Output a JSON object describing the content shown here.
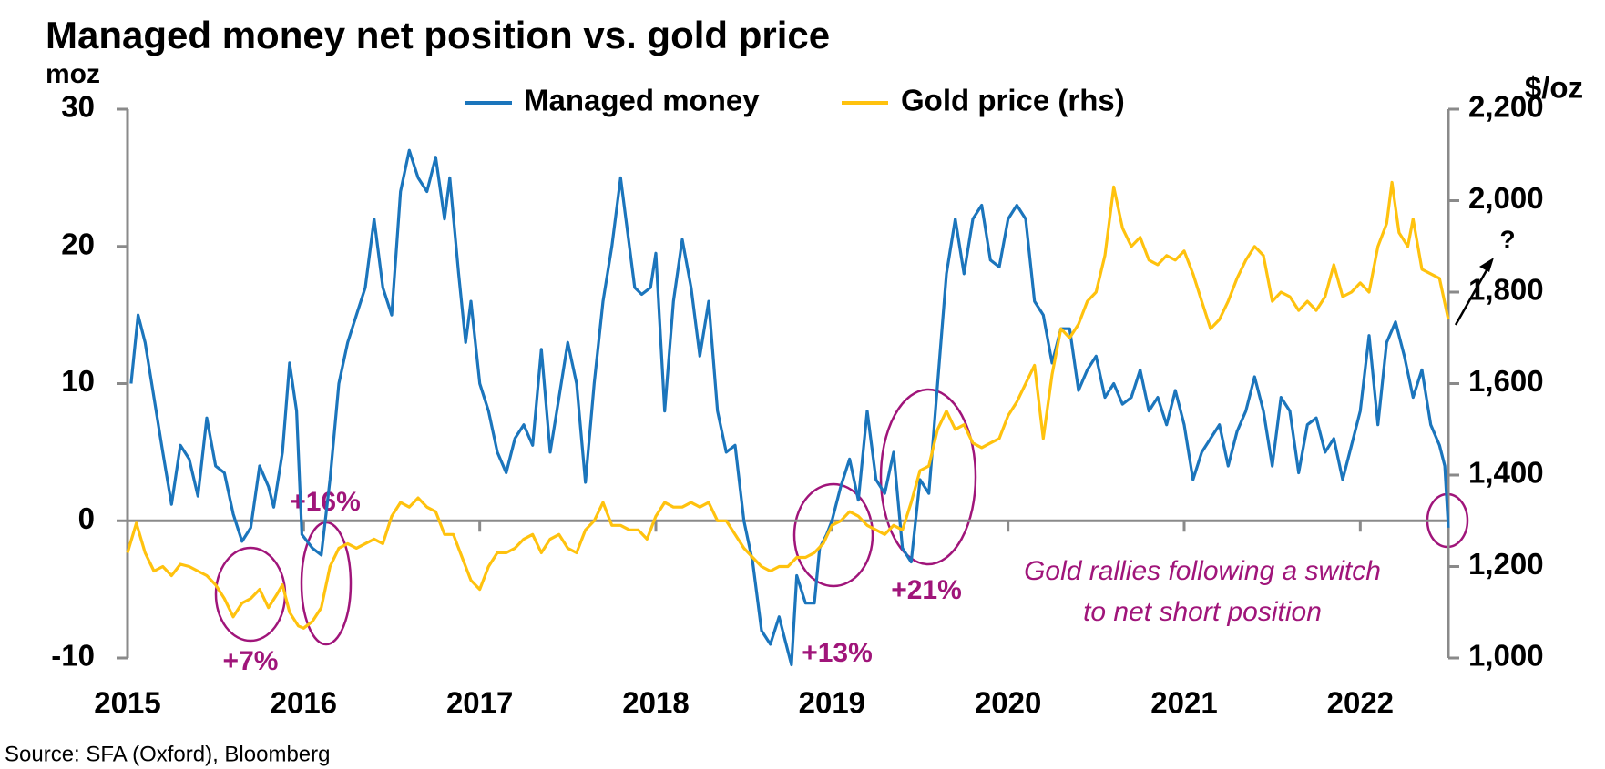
{
  "chart_data": {
    "type": "line",
    "title": "Managed money net position vs. gold price",
    "y_label": "moz",
    "y2_label": "$/oz",
    "source": "Source: SFA (Oxford), Bloomberg",
    "annotations": [
      "+16%",
      "+7%",
      "+13%",
      "+21%",
      "Gold rallies following a switch",
      "to net short position",
      "?"
    ],
    "xlim": [
      2015,
      2022.5
    ],
    "xticks": [
      2015,
      2016,
      2017,
      2018,
      2019,
      2020,
      2021,
      2022
    ],
    "ylim": [
      -10,
      30
    ],
    "yticks": [
      -10,
      0,
      10,
      20,
      30
    ],
    "y2lim": [
      1000,
      2200
    ],
    "y2ticks": [
      {
        "value": 1000,
        "label": "1,000"
      },
      {
        "value": 1200,
        "label": "1,200"
      },
      {
        "value": 1400,
        "label": "1,400"
      },
      {
        "value": 1600,
        "label": "1,600"
      },
      {
        "value": 1800,
        "label": "1,800"
      },
      {
        "value": 2000,
        "label": "2,000"
      },
      {
        "value": 2200,
        "label": "2,200"
      }
    ],
    "series": [
      {
        "name": "Managed money",
        "color": "#1b75bc",
        "axis": "y",
        "x": [
          2015.02,
          2015.06,
          2015.1,
          2015.15,
          2015.2,
          2015.25,
          2015.3,
          2015.35,
          2015.4,
          2015.45,
          2015.5,
          2015.55,
          2015.6,
          2015.65,
          2015.7,
          2015.75,
          2015.8,
          2015.83,
          2015.88,
          2015.92,
          2015.96,
          2015.99,
          2016.05,
          2016.1,
          2016.15,
          2016.2,
          2016.25,
          2016.3,
          2016.35,
          2016.4,
          2016.45,
          2016.5,
          2016.55,
          2016.6,
          2016.65,
          2016.7,
          2016.75,
          2016.8,
          2016.83,
          2016.88,
          2016.92,
          2016.95,
          2017.0,
          2017.05,
          2017.1,
          2017.15,
          2017.2,
          2017.25,
          2017.3,
          2017.35,
          2017.4,
          2017.45,
          2017.5,
          2017.55,
          2017.6,
          2017.65,
          2017.7,
          2017.75,
          2017.8,
          2017.83,
          2017.88,
          2017.92,
          2017.97,
          2018.0,
          2018.05,
          2018.1,
          2018.15,
          2018.2,
          2018.25,
          2018.3,
          2018.35,
          2018.4,
          2018.45,
          2018.5,
          2018.55,
          2018.6,
          2018.65,
          2018.7,
          2018.75,
          2018.77,
          2018.8,
          2018.85,
          2018.9,
          2018.93,
          2018.97,
          2019.0,
          2019.05,
          2019.1,
          2019.15,
          2019.2,
          2019.25,
          2019.3,
          2019.35,
          2019.4,
          2019.45,
          2019.5,
          2019.55,
          2019.6,
          2019.65,
          2019.7,
          2019.75,
          2019.8,
          2019.85,
          2019.9,
          2019.95,
          2020.0,
          2020.05,
          2020.1,
          2020.15,
          2020.2,
          2020.25,
          2020.3,
          2020.35,
          2020.4,
          2020.45,
          2020.5,
          2020.55,
          2020.6,
          2020.65,
          2020.7,
          2020.75,
          2020.8,
          2020.85,
          2020.9,
          2020.95,
          2021.0,
          2021.05,
          2021.1,
          2021.15,
          2021.2,
          2021.25,
          2021.3,
          2021.35,
          2021.4,
          2021.45,
          2021.5,
          2021.55,
          2021.6,
          2021.65,
          2021.7,
          2021.75,
          2021.8,
          2021.85,
          2021.9,
          2021.95,
          2022.0,
          2022.05,
          2022.1,
          2022.15,
          2022.2,
          2022.25,
          2022.3,
          2022.35,
          2022.4,
          2022.45,
          2022.48,
          2022.5
        ],
        "values": [
          10,
          15,
          13,
          9,
          5,
          1.2,
          5.5,
          4.5,
          1.8,
          7.5,
          4,
          3.5,
          0.5,
          -1.5,
          -0.5,
          4,
          2.5,
          1,
          5,
          11.5,
          8,
          -1,
          -2,
          -2.5,
          3,
          10,
          13,
          15,
          17,
          22,
          17,
          15,
          24,
          27,
          25,
          24,
          26.5,
          22,
          25,
          18,
          13,
          16,
          10,
          8,
          5,
          3.5,
          6,
          7,
          5.5,
          12.5,
          5,
          9,
          13,
          10,
          2.8,
          10,
          16,
          20,
          25,
          22,
          17,
          16.5,
          17,
          19.5,
          8,
          16,
          20.5,
          17,
          12,
          16,
          8,
          5,
          5.5,
          0,
          -3,
          -8,
          -9,
          -7,
          -9.5,
          -10.5,
          -4,
          -6,
          -6,
          -2,
          -1,
          0,
          2.5,
          4.5,
          1.5,
          8,
          3,
          2,
          5,
          -2,
          -3,
          3,
          2,
          10,
          18,
          22,
          18,
          22,
          23,
          19,
          18.5,
          22,
          23,
          22,
          16,
          15,
          11.5,
          14,
          14,
          9.5,
          11,
          12,
          9,
          10,
          8.5,
          9,
          11,
          8,
          9,
          7,
          9.5,
          7,
          3,
          5,
          6,
          7,
          4,
          6.5,
          8,
          10.5,
          8,
          4,
          9,
          8,
          3.5,
          7,
          7.5,
          5,
          6,
          3,
          5.5,
          8,
          13.5,
          7,
          13,
          14.5,
          12,
          9,
          11,
          7,
          5.5,
          4,
          -0.5
        ]
      },
      {
        "name": "Gold price (rhs)",
        "color": "#ffc20e",
        "axis": "y2",
        "x": [
          2015.0,
          2015.05,
          2015.1,
          2015.15,
          2015.2,
          2015.25,
          2015.3,
          2015.35,
          2015.4,
          2015.45,
          2015.5,
          2015.55,
          2015.6,
          2015.65,
          2015.7,
          2015.75,
          2015.8,
          2015.85,
          2015.88,
          2015.92,
          2015.97,
          2016.0,
          2016.05,
          2016.1,
          2016.15,
          2016.2,
          2016.25,
          2016.3,
          2016.35,
          2016.4,
          2016.45,
          2016.5,
          2016.55,
          2016.6,
          2016.65,
          2016.7,
          2016.75,
          2016.8,
          2016.85,
          2016.9,
          2016.95,
          2017.0,
          2017.05,
          2017.1,
          2017.15,
          2017.2,
          2017.25,
          2017.3,
          2017.35,
          2017.4,
          2017.45,
          2017.5,
          2017.55,
          2017.6,
          2017.65,
          2017.7,
          2017.75,
          2017.8,
          2017.85,
          2017.9,
          2017.95,
          2018.0,
          2018.05,
          2018.1,
          2018.15,
          2018.2,
          2018.25,
          2018.3,
          2018.35,
          2018.4,
          2018.45,
          2018.5,
          2018.55,
          2018.6,
          2018.65,
          2018.7,
          2018.75,
          2018.8,
          2018.85,
          2018.9,
          2018.95,
          2019.0,
          2019.05,
          2019.1,
          2019.15,
          2019.2,
          2019.25,
          2019.3,
          2019.35,
          2019.4,
          2019.45,
          2019.5,
          2019.55,
          2019.6,
          2019.65,
          2019.7,
          2019.75,
          2019.8,
          2019.85,
          2019.9,
          2019.95,
          2020.0,
          2020.05,
          2020.1,
          2020.15,
          2020.2,
          2020.25,
          2020.3,
          2020.35,
          2020.4,
          2020.45,
          2020.5,
          2020.55,
          2020.6,
          2020.65,
          2020.7,
          2020.75,
          2020.8,
          2020.85,
          2020.9,
          2020.95,
          2021.0,
          2021.05,
          2021.1,
          2021.15,
          2021.2,
          2021.25,
          2021.3,
          2021.35,
          2021.4,
          2021.45,
          2021.5,
          2021.55,
          2021.6,
          2021.65,
          2021.7,
          2021.75,
          2021.8,
          2021.85,
          2021.9,
          2021.95,
          2022.0,
          2022.05,
          2022.1,
          2022.15,
          2022.18,
          2022.22,
          2022.27,
          2022.3,
          2022.35,
          2022.4,
          2022.45,
          2022.5
        ],
        "values": [
          1230,
          1295,
          1230,
          1190,
          1200,
          1180,
          1205,
          1200,
          1190,
          1180,
          1160,
          1130,
          1090,
          1120,
          1130,
          1150,
          1110,
          1140,
          1160,
          1100,
          1070,
          1065,
          1080,
          1110,
          1200,
          1240,
          1250,
          1240,
          1250,
          1260,
          1250,
          1310,
          1340,
          1330,
          1350,
          1330,
          1320,
          1270,
          1270,
          1220,
          1170,
          1150,
          1200,
          1230,
          1230,
          1240,
          1260,
          1270,
          1230,
          1260,
          1270,
          1240,
          1230,
          1280,
          1300,
          1340,
          1290,
          1290,
          1280,
          1280,
          1260,
          1310,
          1340,
          1330,
          1330,
          1340,
          1330,
          1340,
          1300,
          1300,
          1270,
          1240,
          1220,
          1200,
          1190,
          1200,
          1200,
          1220,
          1220,
          1230,
          1250,
          1290,
          1300,
          1320,
          1310,
          1290,
          1280,
          1270,
          1290,
          1280,
          1340,
          1410,
          1420,
          1500,
          1540,
          1500,
          1510,
          1470,
          1460,
          1470,
          1480,
          1530,
          1560,
          1600,
          1640,
          1480,
          1620,
          1720,
          1700,
          1730,
          1780,
          1800,
          1880,
          2030,
          1940,
          1900,
          1920,
          1870,
          1860,
          1880,
          1870,
          1890,
          1840,
          1780,
          1720,
          1740,
          1780,
          1830,
          1870,
          1900,
          1880,
          1780,
          1800,
          1790,
          1760,
          1780,
          1760,
          1790,
          1860,
          1790,
          1800,
          1820,
          1800,
          1900,
          1950,
          2040,
          1930,
          1900,
          1960,
          1850,
          1840,
          1830,
          1740
        ]
      }
    ]
  }
}
